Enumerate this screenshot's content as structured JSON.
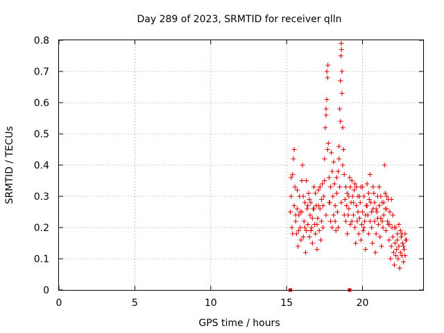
{
  "chart_data": {
    "type": "scatter",
    "title": "Day 289 of 2023, SRMTID for receiver qlln",
    "xlabel": "GPS time / hours",
    "ylabel": "SRMTID / TECUs",
    "xlim": [
      0,
      24
    ],
    "ylim": [
      0,
      0.8
    ],
    "xticks": [
      0,
      5,
      10,
      15,
      20
    ],
    "yticks": [
      0,
      0.1,
      0.2,
      0.3,
      0.4,
      0.5,
      0.6,
      0.7,
      0.8
    ],
    "xtick_labels": [
      "0",
      "5",
      "10",
      "15",
      "20"
    ],
    "ytick_labels": [
      "0",
      "0.1",
      "0.2",
      "0.3",
      "0.4",
      "0.5",
      "0.6",
      "0.7",
      "0.8"
    ],
    "grid": true,
    "color": "#e00000",
    "marker": "+",
    "zero_markers": [
      [
        15.25,
        0
      ],
      [
        19.15,
        0
      ]
    ],
    "series": [
      {
        "name": "SRMTID",
        "points": [
          [
            15.25,
            0.25
          ],
          [
            15.3,
            0.3
          ],
          [
            15.35,
            0.2
          ],
          [
            15.4,
            0.37
          ],
          [
            15.45,
            0.42
          ],
          [
            15.5,
            0.45
          ],
          [
            15.55,
            0.33
          ],
          [
            15.6,
            0.22
          ],
          [
            15.65,
            0.18
          ],
          [
            15.7,
            0.26
          ],
          [
            15.75,
            0.14
          ],
          [
            15.8,
            0.24
          ],
          [
            15.85,
            0.3
          ],
          [
            15.9,
            0.2
          ],
          [
            15.95,
            0.16
          ],
          [
            16.0,
            0.35
          ],
          [
            16.05,
            0.4
          ],
          [
            16.1,
            0.3
          ],
          [
            16.15,
            0.22
          ],
          [
            16.2,
            0.28
          ],
          [
            16.25,
            0.12
          ],
          [
            16.3,
            0.19
          ],
          [
            16.35,
            0.26
          ],
          [
            16.4,
            0.21
          ],
          [
            16.45,
            0.31
          ],
          [
            16.5,
            0.17
          ],
          [
            16.55,
            0.24
          ],
          [
            16.6,
            0.28
          ],
          [
            16.65,
            0.2
          ],
          [
            16.7,
            0.15
          ],
          [
            16.75,
            0.26
          ],
          [
            16.8,
            0.33
          ],
          [
            16.85,
            0.21
          ],
          [
            16.9,
            0.18
          ],
          [
            16.95,
            0.27
          ],
          [
            17.0,
            0.13
          ],
          [
            17.05,
            0.23
          ],
          [
            17.1,
            0.32
          ],
          [
            17.15,
            0.19
          ],
          [
            17.2,
            0.26
          ],
          [
            17.25,
            0.16
          ],
          [
            17.3,
            0.29
          ],
          [
            17.35,
            0.34
          ],
          [
            17.4,
            0.2
          ],
          [
            17.45,
            0.3
          ],
          [
            17.5,
            0.42
          ],
          [
            17.55,
            0.52
          ],
          [
            17.6,
            0.58
          ],
          [
            17.65,
            0.61
          ],
          [
            17.7,
            0.68
          ],
          [
            17.72,
            0.72
          ],
          [
            17.75,
            0.47
          ],
          [
            17.8,
            0.36
          ],
          [
            17.85,
            0.28
          ],
          [
            17.9,
            0.22
          ],
          [
            17.95,
            0.44
          ],
          [
            18.0,
            0.38
          ],
          [
            18.05,
            0.3
          ],
          [
            18.1,
            0.24
          ],
          [
            18.15,
            0.34
          ],
          [
            18.2,
            0.27
          ],
          [
            18.25,
            0.19
          ],
          [
            18.3,
            0.31
          ],
          [
            18.35,
            0.25
          ],
          [
            18.4,
            0.38
          ],
          [
            18.45,
            0.46
          ],
          [
            18.5,
            0.58
          ],
          [
            18.55,
            0.67
          ],
          [
            18.58,
            0.75
          ],
          [
            18.6,
            0.79
          ],
          [
            18.62,
            0.77
          ],
          [
            18.65,
            0.63
          ],
          [
            18.7,
            0.52
          ],
          [
            18.75,
            0.45
          ],
          [
            18.8,
            0.37
          ],
          [
            18.85,
            0.29
          ],
          [
            18.9,
            0.22
          ],
          [
            18.95,
            0.27
          ],
          [
            19.0,
            0.18
          ],
          [
            19.05,
            0.24
          ],
          [
            19.1,
            0.3
          ],
          [
            19.15,
            0.36
          ],
          [
            19.2,
            0.33
          ],
          [
            19.25,
            0.28
          ],
          [
            19.3,
            0.35
          ],
          [
            19.35,
            0.3
          ],
          [
            19.4,
            0.24
          ],
          [
            19.45,
            0.32
          ],
          [
            19.5,
            0.2
          ],
          [
            19.55,
            0.15
          ],
          [
            19.6,
            0.27
          ],
          [
            19.65,
            0.22
          ],
          [
            19.7,
            0.3
          ],
          [
            19.75,
            0.18
          ],
          [
            19.8,
            0.23
          ],
          [
            19.85,
            0.28
          ],
          [
            19.9,
            0.16
          ],
          [
            19.95,
            0.21
          ],
          [
            20.0,
            0.25
          ],
          [
            20.05,
            0.19
          ],
          [
            20.1,
            0.3
          ],
          [
            20.15,
            0.22
          ],
          [
            20.2,
            0.13
          ],
          [
            20.25,
            0.27
          ],
          [
            20.3,
            0.34
          ],
          [
            20.35,
            0.24
          ],
          [
            20.4,
            0.18
          ],
          [
            20.45,
            0.29
          ],
          [
            20.5,
            0.37
          ],
          [
            20.55,
            0.28
          ],
          [
            20.6,
            0.2
          ],
          [
            20.65,
            0.15
          ],
          [
            20.7,
            0.26
          ],
          [
            20.75,
            0.31
          ],
          [
            20.8,
            0.22
          ],
          [
            20.85,
            0.12
          ],
          [
            20.9,
            0.18
          ],
          [
            20.95,
            0.25
          ],
          [
            21.0,
            0.3
          ],
          [
            21.05,
            0.21
          ],
          [
            21.1,
            0.27
          ],
          [
            21.15,
            0.17
          ],
          [
            21.2,
            0.23
          ],
          [
            21.25,
            0.14
          ],
          [
            21.3,
            0.28
          ],
          [
            21.35,
            0.2
          ],
          [
            21.4,
            0.24
          ],
          [
            21.45,
            0.4
          ],
          [
            21.5,
            0.31
          ],
          [
            21.55,
            0.19
          ],
          [
            21.6,
            0.26
          ],
          [
            21.65,
            0.22
          ],
          [
            21.7,
            0.29
          ],
          [
            21.75,
            0.16
          ],
          [
            21.8,
            0.21
          ],
          [
            21.85,
            0.1
          ],
          [
            21.9,
            0.14
          ],
          [
            21.95,
            0.2
          ],
          [
            22.0,
            0.17
          ],
          [
            22.05,
            0.12
          ],
          [
            22.1,
            0.08
          ],
          [
            22.15,
            0.15
          ],
          [
            22.2,
            0.2
          ],
          [
            22.25,
            0.13
          ],
          [
            22.3,
            0.18
          ],
          [
            22.35,
            0.1
          ],
          [
            22.4,
            0.14
          ],
          [
            22.45,
            0.07
          ],
          [
            22.5,
            0.12
          ],
          [
            22.55,
            0.17
          ],
          [
            22.6,
            0.11
          ],
          [
            22.65,
            0.15
          ],
          [
            22.7,
            0.09
          ],
          [
            22.75,
            0.13
          ],
          [
            22.8,
            0.18
          ],
          [
            22.85,
            0.16
          ],
          [
            15.3,
            0.36
          ],
          [
            15.5,
            0.27
          ],
          [
            15.7,
            0.32
          ],
          [
            15.9,
            0.25
          ],
          [
            16.1,
            0.17
          ],
          [
            16.3,
            0.35
          ],
          [
            16.5,
            0.29
          ],
          [
            16.7,
            0.23
          ],
          [
            16.9,
            0.31
          ],
          [
            17.1,
            0.27
          ],
          [
            17.3,
            0.22
          ],
          [
            17.5,
            0.35
          ],
          [
            17.7,
            0.45
          ],
          [
            17.9,
            0.33
          ],
          [
            18.1,
            0.41
          ],
          [
            18.3,
            0.36
          ],
          [
            18.5,
            0.33
          ],
          [
            18.7,
            0.4
          ],
          [
            18.9,
            0.33
          ],
          [
            19.1,
            0.26
          ],
          [
            19.3,
            0.22
          ],
          [
            19.5,
            0.34
          ],
          [
            19.7,
            0.25
          ],
          [
            19.9,
            0.33
          ],
          [
            20.1,
            0.2
          ],
          [
            20.3,
            0.27
          ],
          [
            20.5,
            0.22
          ],
          [
            20.7,
            0.33
          ],
          [
            20.9,
            0.26
          ],
          [
            21.1,
            0.33
          ],
          [
            21.3,
            0.22
          ],
          [
            21.5,
            0.26
          ],
          [
            21.7,
            0.21
          ],
          [
            21.9,
            0.29
          ],
          [
            22.1,
            0.2
          ],
          [
            22.3,
            0.16
          ],
          [
            22.5,
            0.19
          ],
          [
            22.7,
            0.14
          ],
          [
            22.9,
            0.16
          ],
          [
            15.4,
            0.18
          ],
          [
            15.6,
            0.24
          ],
          [
            15.8,
            0.19
          ],
          [
            16.0,
            0.25
          ],
          [
            16.2,
            0.2
          ],
          [
            16.4,
            0.27
          ],
          [
            16.6,
            0.19
          ],
          [
            16.8,
            0.26
          ],
          [
            17.0,
            0.21
          ],
          [
            17.2,
            0.33
          ],
          [
            17.4,
            0.27
          ],
          [
            17.6,
            0.24
          ],
          [
            17.8,
            0.28
          ],
          [
            18.0,
            0.2
          ],
          [
            18.2,
            0.22
          ],
          [
            18.4,
            0.2
          ],
          [
            18.6,
            0.28
          ],
          [
            18.8,
            0.24
          ],
          [
            19.0,
            0.31
          ],
          [
            19.2,
            0.21
          ],
          [
            19.4,
            0.28
          ],
          [
            19.6,
            0.33
          ],
          [
            19.8,
            0.3
          ],
          [
            20.0,
            0.33
          ],
          [
            20.2,
            0.24
          ],
          [
            20.4,
            0.31
          ],
          [
            20.6,
            0.25
          ],
          [
            20.8,
            0.28
          ],
          [
            21.0,
            0.23
          ],
          [
            21.2,
            0.3
          ],
          [
            21.4,
            0.28
          ],
          [
            21.6,
            0.3
          ],
          [
            21.8,
            0.25
          ],
          [
            22.0,
            0.24
          ],
          [
            22.2,
            0.11
          ],
          [
            22.4,
            0.21
          ],
          [
            22.6,
            0.18
          ],
          [
            22.8,
            0.11
          ],
          [
            17.65,
            0.7
          ],
          [
            18.55,
            0.54
          ],
          [
            18.65,
            0.7
          ],
          [
            17.6,
            0.56
          ],
          [
            18.45,
            0.42
          ]
        ]
      }
    ]
  }
}
